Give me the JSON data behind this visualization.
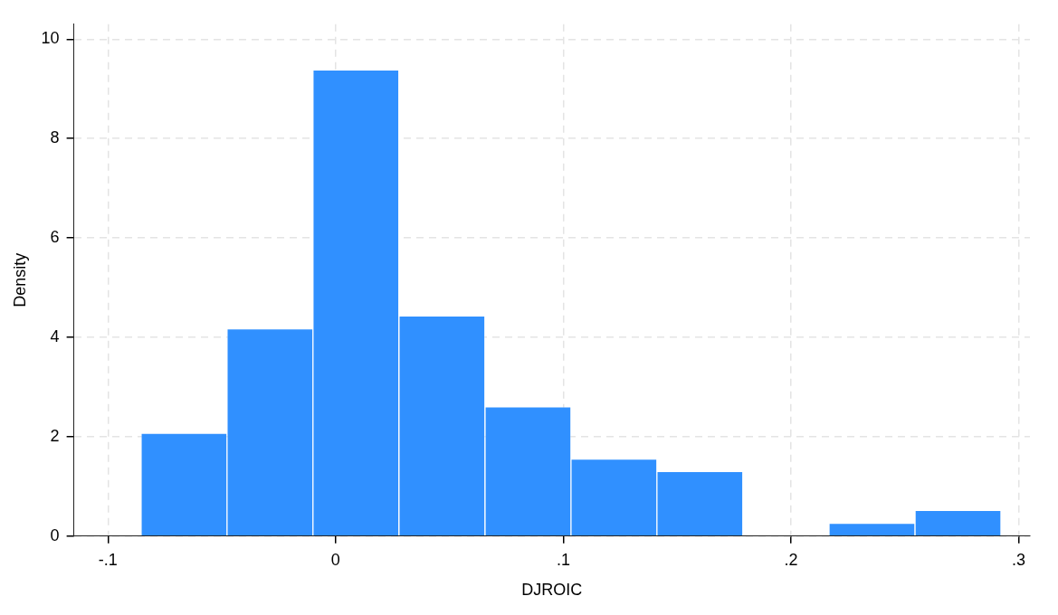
{
  "chart_data": {
    "type": "histogram",
    "xlabel": "DJROIC",
    "ylabel": "Density",
    "bins": [
      -0.0855,
      -0.0477,
      -0.01,
      0.0278,
      0.0656,
      0.1034,
      0.1411,
      0.1789,
      0.2167,
      0.2545,
      0.2923
    ],
    "values": [
      2.07,
      4.17,
      9.38,
      4.43,
      2.6,
      1.55,
      1.3,
      0,
      0.26,
      0.52
    ],
    "color": "#3090ff",
    "xlim": [
      -0.115,
      0.305
    ],
    "xticks": [
      {
        "value": -0.1,
        "label": "-.1"
      },
      0,
      {
        "value": 0.1,
        "label": ".1"
      },
      {
        "value": 0.2,
        "label": ".2"
      },
      {
        "value": 0.3,
        "label": ".3"
      }
    ],
    "ylim": [
      0,
      10.3
    ],
    "yticks": [
      0,
      2,
      4,
      6,
      8,
      10
    ],
    "grid": true,
    "legend": false
  }
}
